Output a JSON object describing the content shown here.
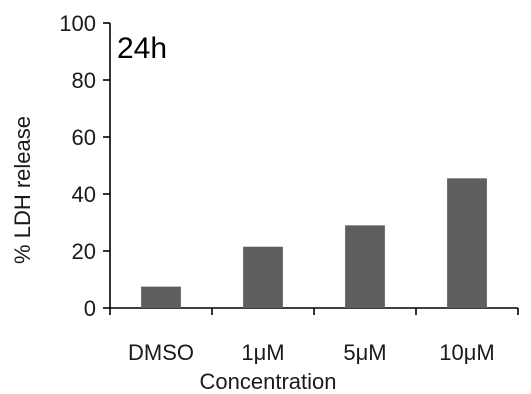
{
  "chart_data": {
    "type": "bar",
    "annotation": "24h",
    "xlabel": "Concentration",
    "ylabel": "% LDH release",
    "categories": [
      "DMSO",
      "1μM",
      "5μM",
      "10μM"
    ],
    "values": [
      7.5,
      21.5,
      29,
      45.5
    ],
    "ylim": [
      0,
      100
    ],
    "yticks": [
      "0",
      "20",
      "40",
      "60",
      "80",
      "100"
    ],
    "grid": false,
    "legend": "none",
    "bar_color": "#5f5f5f",
    "axis_color": "#000000"
  }
}
